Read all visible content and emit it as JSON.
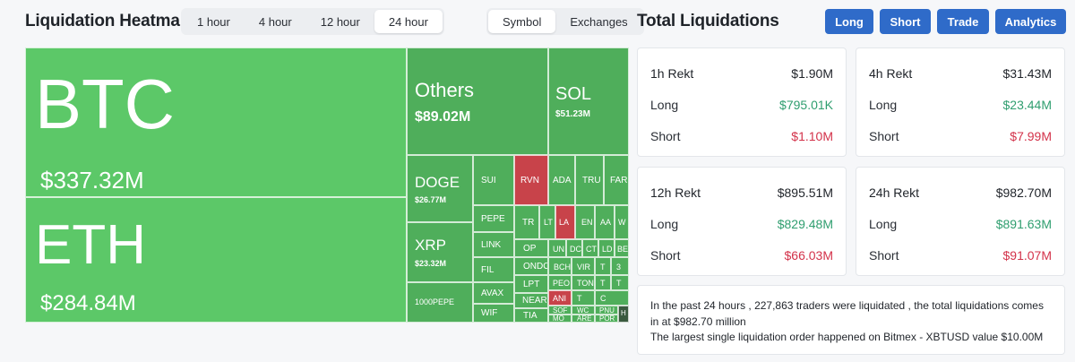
{
  "heatmap": {
    "title": "Liquidation Heatmap",
    "time_tabs": [
      {
        "label": "1 hour",
        "active": false
      },
      {
        "label": "4 hour",
        "active": false
      },
      {
        "label": "12 hour",
        "active": false
      },
      {
        "label": "24 hour",
        "active": true
      }
    ],
    "view_tabs": [
      {
        "label": "Symbol",
        "active": true
      },
      {
        "label": "Exchanges",
        "active": false
      }
    ],
    "colors": {
      "green": "#5cc868",
      "mid_green": "#4fae5b",
      "dark_green": "#3d8c48",
      "red": "#c8434a",
      "dark": "#3a5a3f"
    },
    "tiles": {
      "btc": {
        "symbol": "BTC",
        "value": "$337.32M"
      },
      "eth": {
        "symbol": "ETH",
        "value": "$284.84M"
      },
      "others": {
        "symbol": "Others",
        "value": "$89.02M"
      },
      "sol": {
        "symbol": "SOL",
        "value": "$51.23M"
      },
      "doge": {
        "symbol": "DOGE",
        "value": "$26.77M"
      },
      "xrp": {
        "symbol": "XRP",
        "value": "$23.32M"
      },
      "pepe1000": {
        "symbol": "1000PEPE"
      },
      "small": [
        "SUI",
        "RVN",
        "ADA",
        "TRU",
        "FAR",
        "PEPE",
        "TR",
        "LT",
        "LA",
        "EN",
        "AA",
        "W",
        "LINK",
        "OP",
        "UN",
        "DC",
        "CT",
        "LD",
        "BE",
        "FIL",
        "ONDO",
        "BCH",
        "VIR",
        "T",
        "3",
        "AVAX",
        "LPT",
        "PEO",
        "TON",
        "T",
        "T",
        "NEAR",
        "ANI",
        "T",
        "C",
        "WIF",
        "TIA",
        "SOF",
        "WC",
        "PNU",
        "MO",
        "ARE",
        "POR",
        "H"
      ]
    }
  },
  "totals": {
    "title": "Total Liquidations",
    "nav": [
      "Long",
      "Short",
      "Trade",
      "Analytics"
    ],
    "cards": [
      {
        "period": "1h Rekt",
        "total": "$1.90M",
        "long_label": "Long",
        "long": "$795.01K",
        "short_label": "Short",
        "short": "$1.10M"
      },
      {
        "period": "4h Rekt",
        "total": "$31.43M",
        "long_label": "Long",
        "long": "$23.44M",
        "short_label": "Short",
        "short": "$7.99M"
      },
      {
        "period": "12h Rekt",
        "total": "$895.51M",
        "long_label": "Long",
        "long": "$829.48M",
        "short_label": "Short",
        "short": "$66.03M"
      },
      {
        "period": "24h Rekt",
        "total": "$982.70M",
        "long_label": "Long",
        "long": "$891.63M",
        "short_label": "Short",
        "short": "$91.07M"
      }
    ],
    "summary": {
      "line1": "In the past 24 hours , 227,863 traders were liquidated , the total liquidations comes in at $982.70 million",
      "line2": "The largest single liquidation order happened on Bitmex - XBTUSD value $10.00M"
    }
  }
}
